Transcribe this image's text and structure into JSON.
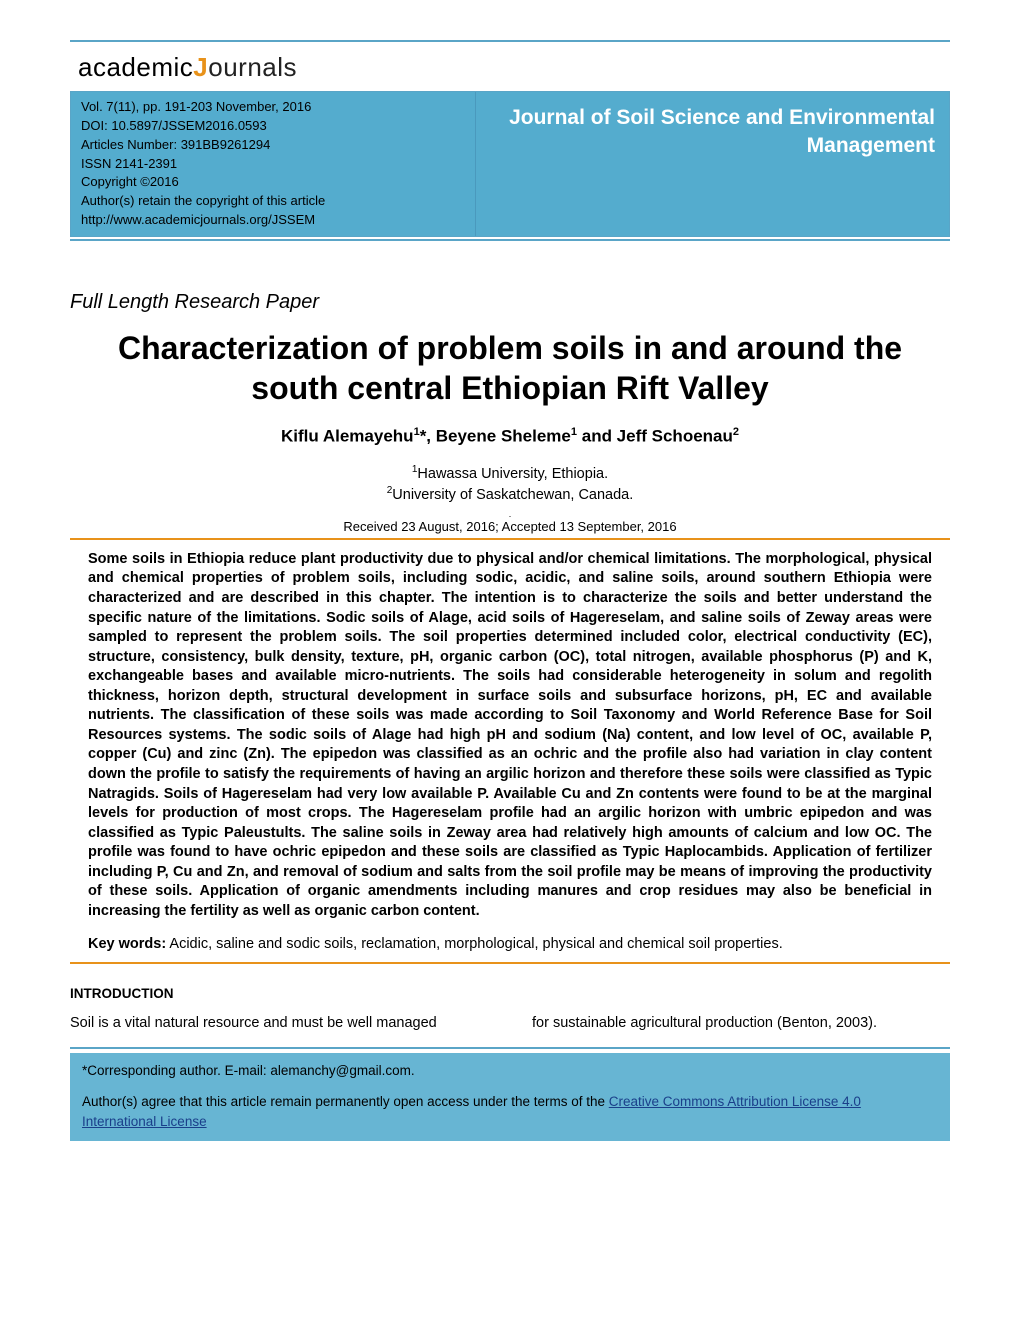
{
  "colors": {
    "header_bg": "#54acce",
    "header_border": "#5aa5c7",
    "orange_rule": "#e8921a",
    "footer_bg": "#67b5d3",
    "link": "#1a3f8a",
    "white": "#ffffff",
    "black": "#000000"
  },
  "typography": {
    "body_family": "Arial",
    "header_family": "Century Gothic",
    "title_size": 32,
    "abstract_size": 14.5
  },
  "logo": {
    "part1": "academic",
    "part2": "J",
    "part3": "ournals"
  },
  "meta": {
    "line1": "Vol. 7(11), pp. 191-203 November, 2016",
    "line2": "DOI: 10.5897/JSSEM2016.0593",
    "line3": "Articles Number: 391BB9261294",
    "line4": "ISSN 2141-2391",
    "line5": "Copyright ©2016",
    "line6": "Author(s) retain the copyright of this article",
    "line7": "http://www.academicjournals.org/JSSEM"
  },
  "journal_name": "Journal of Soil Science and Environmental Management",
  "paper_type": "Full Length Research Paper",
  "title": "Characterization of problem soils in and around the south central Ethiopian Rift Valley",
  "authors_html": "Kiflu Alemayehu<sup>1</sup>*, Beyene Sheleme<sup>1</sup> and Jeff Schoenau<sup>2</sup>",
  "affiliations": {
    "a1": "Hawassa University, Ethiopia.",
    "a2": "University of Saskatchewan, Canada."
  },
  "dates": "Received 23 August, 2016; Accepted 13 September, 2016",
  "abstract": "Some soils in Ethiopia reduce plant productivity due to physical and/or chemical limitations. The morphological, physical and chemical properties of problem soils, including sodic, acidic, and saline soils, around southern Ethiopia were characterized and are described in this chapter. The intention is to characterize the soils and better understand the specific nature of the limitations. Sodic soils of Alage, acid soils of Hagereselam, and saline soils of Zeway areas were sampled to represent the problem soils. The soil properties determined included color, electrical conductivity (EC), structure, consistency, bulk density, texture, pH, organic carbon (OC), total nitrogen, available phosphorus (P) and K, exchangeable bases and available micro-nutrients. The soils had considerable heterogeneity in solum and regolith thickness, horizon depth, structural development in surface soils and subsurface horizons, pH, EC and available nutrients. The classification of these soils was made according to Soil Taxonomy and World Reference Base for Soil Resources systems. The sodic soils of Alage had high pH and sodium (Na) content, and low level of OC, available P, copper (Cu) and zinc (Zn). The epipedon was classified as an ochric and the profile also had variation in clay content down the profile to satisfy the requirements of having an argilic horizon and therefore these soils were classified as Typic Natragids. Soils of Hagereselam had very low available P. Available Cu and Zn contents were found to be at the marginal levels for production of most crops. The Hagereselam profile had an argilic horizon with umbric epipedon and was classified as Typic Paleustults. The saline soils in Zeway area had relatively high amounts of calcium and low OC. The profile was found to have ochric epipedon and these soils are classified as Typic Haplocambids. Application of fertilizer including P, Cu and Zn, and removal of sodium and salts from the soil profile may be means of improving the productivity of these soils. Application of organic amendments including manures and crop residues may also be beneficial in increasing the fertility as well as organic carbon content.",
  "keywords_label": "Key words:",
  "keywords": " Acidic, saline and sodic soils, reclamation, morphological, physical and chemical soil properties.",
  "intro_heading": "INTRODUCTION",
  "intro_col1": "Soil is a vital natural resource and must be well managed",
  "intro_col2": "for sustainable agricultural production (Benton, 2003).",
  "footer": {
    "corr": "*Corresponding author. E-mail: alemanchy@gmail.com.",
    "license_pre": "Author(s) agree that this article remain permanently open access under the terms of the ",
    "license_link": "Creative Commons Attribution License 4.0 International License"
  }
}
